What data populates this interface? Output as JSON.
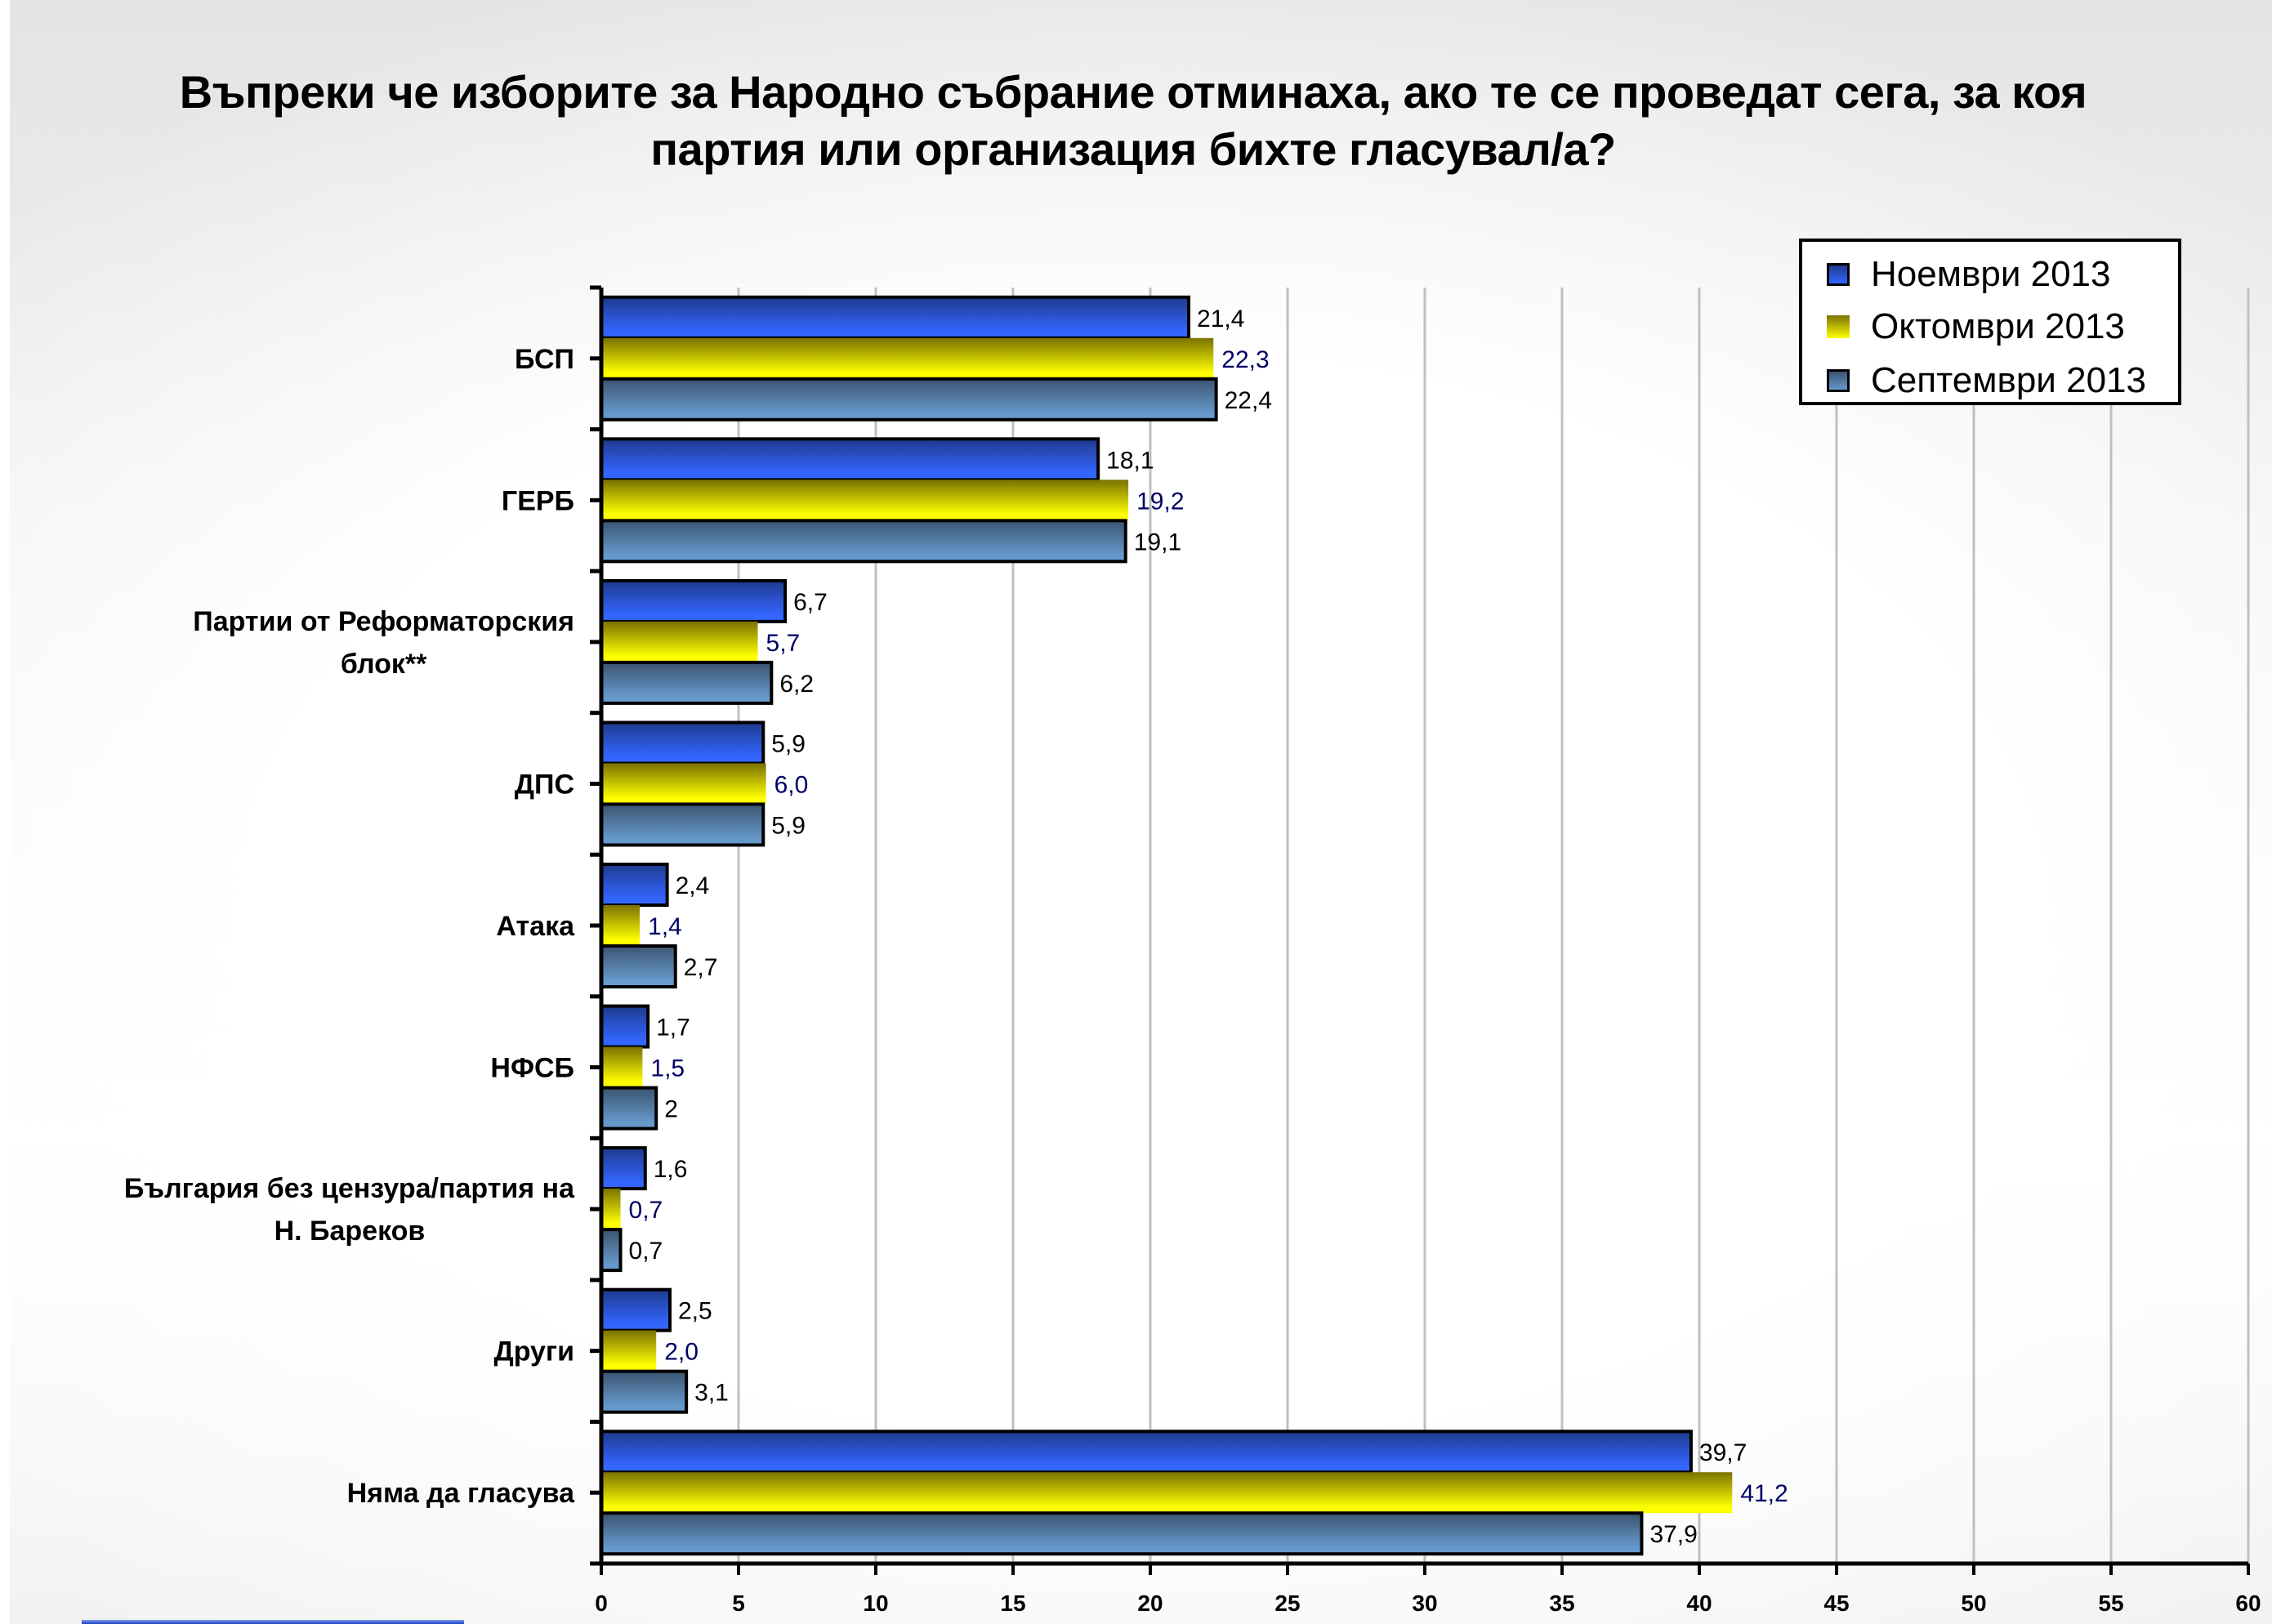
{
  "chart_data": {
    "type": "bar",
    "orientation": "horizontal",
    "title": "Въпреки че изборите за Народно събрание отминаха, ако те се проведат сега, за коя партия или организация бихте гласувал/а?",
    "title_lines": [
      "Въпреки че изборите за Народно събрание отминаха, ако те се проведат сега, за коя",
      "партия или организация бихте гласувал/а?"
    ],
    "categories": [
      "БСП",
      "ГЕРБ",
      "Партии от Реформаторския блок**",
      "ДПС",
      "Атака",
      "НФСБ",
      "България без цензура/партия на Н. Бареков",
      "Други",
      "Няма да гласува"
    ],
    "category_label_lines": [
      [
        "БСП"
      ],
      [
        "ГЕРБ"
      ],
      [
        "Партии от Реформаторския",
        "блок**"
      ],
      [
        "ДПС"
      ],
      [
        "Атака"
      ],
      [
        "НФСБ"
      ],
      [
        "България без цензура/партия на",
        "Н. Бареков"
      ],
      [
        "Други"
      ],
      [
        "Няма да гласува"
      ]
    ],
    "series": [
      {
        "name": "Ноември 2013",
        "values": [
          21.4,
          18.1,
          6.7,
          5.9,
          2.4,
          1.7,
          1.6,
          2.5,
          39.7
        ],
        "labels": [
          "21,4",
          "18,1",
          "6,7",
          "5,9",
          "2,4",
          "1,7",
          "1,6",
          "2,5",
          "39,7"
        ],
        "color_top": "#1f3a8f",
        "color_bottom": "#3366ff",
        "label_color": "#000000",
        "border": true
      },
      {
        "name": "Октомври 2013",
        "values": [
          22.3,
          19.2,
          5.7,
          6.0,
          1.4,
          1.5,
          0.7,
          2.0,
          41.2
        ],
        "labels": [
          "22,3",
          "19,2",
          "5,7",
          "6,0",
          "1,4",
          "1,5",
          "0,7",
          "2,0",
          "41,2"
        ],
        "color_top": "#7a7200",
        "color_bottom": "#ffff00",
        "label_color": "#000066",
        "border": false
      },
      {
        "name": "Септември 2013",
        "values": [
          22.4,
          19.1,
          6.2,
          5.9,
          2.7,
          2,
          0.7,
          3.1,
          37.9
        ],
        "labels": [
          "22,4",
          "19,1",
          "6,2",
          "5,9",
          "2,7",
          "2",
          "0,7",
          "3,1",
          "37,9"
        ],
        "color_top": "#3b5470",
        "color_bottom": "#6699cc",
        "label_color": "#000000",
        "border": true
      }
    ],
    "xlim": [
      0,
      60
    ],
    "xticks": [
      0,
      5,
      10,
      15,
      20,
      25,
      30,
      35,
      40,
      45,
      50,
      55,
      60
    ],
    "xlabel": "",
    "ylabel": "",
    "grid": "vertical",
    "legend_position": "top-right"
  }
}
